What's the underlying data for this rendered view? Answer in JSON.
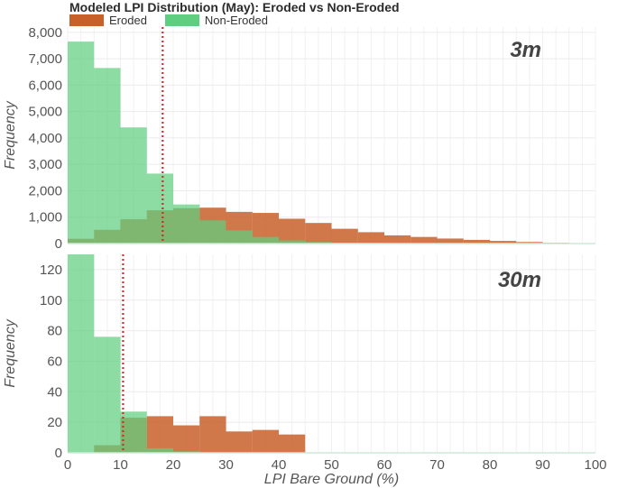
{
  "chart_data": {
    "type": "bar",
    "title": "Modeled LPI Distribution (May): Eroded vs Non-Eroded",
    "legend": {
      "placement": "top-left",
      "entries": [
        {
          "name": "Eroded",
          "color": "#c8602a"
        },
        {
          "name": "Non-Eroded",
          "color": "#5fce80"
        }
      ]
    },
    "xlabel": "LPI Bare Ground (%)",
    "xlim": [
      0,
      100
    ],
    "x_ticks": [
      "0",
      "10",
      "20",
      "30",
      "40",
      "50",
      "60",
      "70",
      "80",
      "90",
      "100"
    ],
    "panels": [
      {
        "label": "3m",
        "ylabel": "Frequency",
        "ylim": [
          0,
          8200
        ],
        "y_ticks": [
          "0",
          "1,000",
          "2,000",
          "3,000",
          "4,000",
          "5,000",
          "6,000",
          "7,000",
          "8,000"
        ],
        "bins": [
          0,
          5,
          10,
          15,
          20,
          25,
          30,
          35,
          40,
          45,
          50,
          55,
          60,
          65,
          70,
          75,
          80,
          85,
          90,
          95,
          100
        ],
        "series": [
          {
            "name": "Eroded",
            "values": [
              180,
              520,
              920,
              1260,
              1340,
              1360,
              1200,
              1160,
              940,
              780,
              560,
              430,
              310,
              250,
              190,
              140,
              100,
              60,
              30,
              10
            ]
          },
          {
            "name": "Non-Eroded",
            "values": [
              7650,
              6650,
              4400,
              2650,
              1480,
              880,
              500,
              250,
              120,
              60,
              30,
              20,
              10,
              5,
              5,
              0,
              0,
              0,
              0,
              0
            ]
          }
        ],
        "mean_line": {
          "x": 18,
          "color": "#d42a2a"
        }
      },
      {
        "label": "30m",
        "ylabel": "Frequency",
        "ylim": [
          0,
          130
        ],
        "y_ticks": [
          "0",
          "20",
          "40",
          "60",
          "80",
          "100",
          "120"
        ],
        "bins": [
          0,
          5,
          10,
          15,
          20,
          25,
          30,
          35,
          40,
          45,
          50,
          55,
          60,
          65,
          70,
          75,
          80,
          85,
          90,
          95,
          100
        ],
        "series": [
          {
            "name": "Eroded",
            "values": [
              0,
              5,
              23,
              24,
              18,
              24,
              14,
              15,
              12,
              0,
              0,
              0,
              0,
              0,
              0,
              0,
              0,
              0,
              0,
              0
            ]
          },
          {
            "name": "Non-Eroded",
            "values": [
              130,
              76,
              27,
              3,
              1,
              0,
              0,
              0,
              0,
              0,
              0,
              0,
              0,
              0,
              0,
              0,
              0,
              0,
              0,
              0
            ]
          }
        ],
        "mean_line": {
          "x": 10.5,
          "color": "#d42a2a"
        }
      }
    ]
  }
}
